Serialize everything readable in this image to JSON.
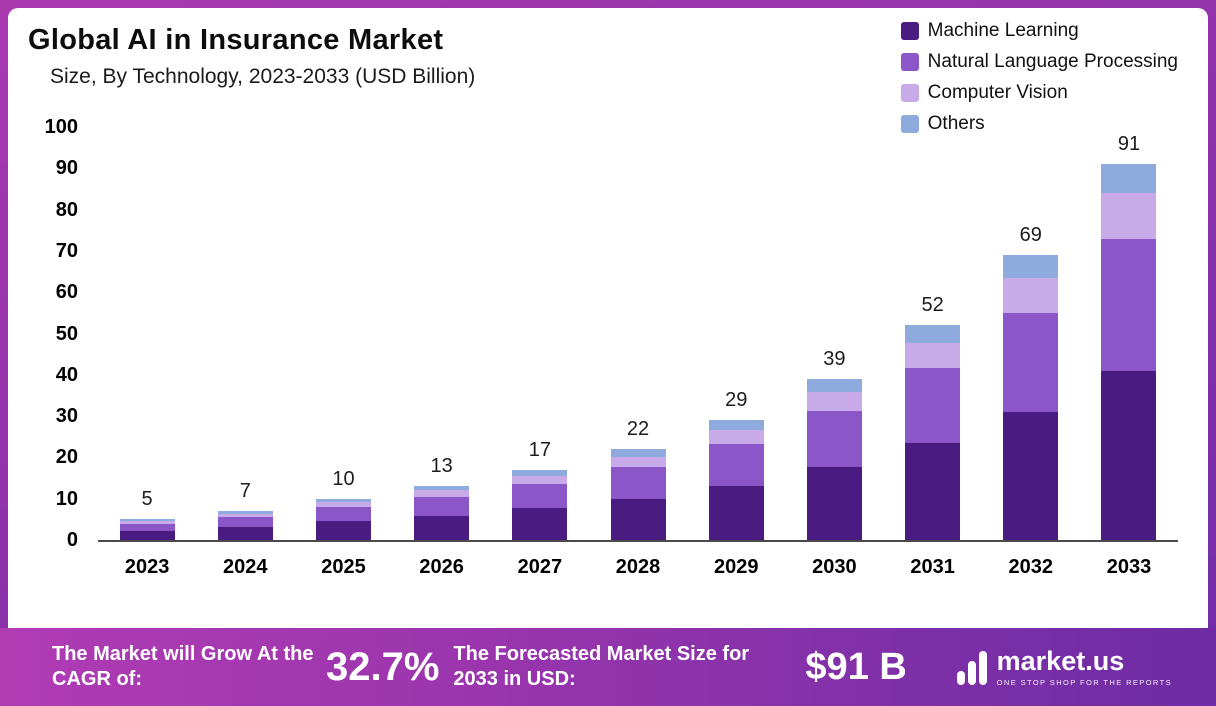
{
  "chart_data": {
    "type": "bar",
    "stacked": true,
    "title": "Global AI in Insurance Market",
    "subtitle": "Size, By Technology, 2023-2033 (USD Billion)",
    "categories": [
      "2023",
      "2024",
      "2025",
      "2026",
      "2027",
      "2028",
      "2029",
      "2030",
      "2031",
      "2032",
      "2033"
    ],
    "series": [
      {
        "name": "Machine Learning",
        "color": "#4a1b80",
        "values": [
          2.3,
          3.2,
          4.5,
          5.9,
          7.7,
          9.9,
          13.0,
          17.6,
          23.4,
          31.0,
          41.0
        ]
      },
      {
        "name": "Natural Language Processing",
        "color": "#8b57c8",
        "values": [
          1.7,
          2.4,
          3.5,
          4.5,
          5.9,
          7.7,
          10.2,
          13.6,
          18.2,
          24.0,
          32.0
        ]
      },
      {
        "name": "Computer Vision",
        "color": "#c8aae8",
        "values": [
          0.6,
          0.8,
          1.2,
          1.6,
          2.0,
          2.6,
          3.5,
          4.7,
          6.2,
          8.5,
          11.0
        ]
      },
      {
        "name": "Others",
        "color": "#8fabdd",
        "values": [
          0.4,
          0.6,
          0.8,
          1.0,
          1.4,
          1.8,
          2.3,
          3.1,
          4.2,
          5.5,
          7.0
        ]
      }
    ],
    "totals": [
      5,
      7,
      10,
      13,
      17,
      22,
      29,
      39,
      52,
      69,
      91
    ],
    "xlabel": "",
    "ylabel": "",
    "ylim": [
      0,
      100
    ],
    "yticks": [
      0,
      10,
      20,
      30,
      40,
      50,
      60,
      70,
      80,
      90,
      100
    ],
    "grid": false,
    "legend_position": "top-right"
  },
  "footer": {
    "cagr_label": "The Market will Grow At the CAGR of:",
    "cagr_value": "32.7%",
    "forecast_label": "The Forecasted Market Size for 2033 in USD:",
    "forecast_value": "$91 B",
    "brand": {
      "name": "market.us",
      "tagline": "One Stop Shop For The Reports"
    }
  }
}
